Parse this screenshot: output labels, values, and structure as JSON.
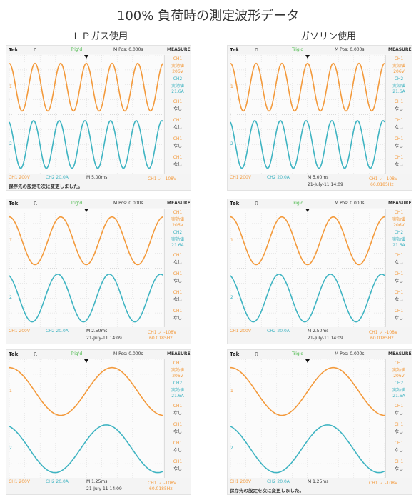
{
  "title": "100% 負荷時の測定波形データ",
  "columns": [
    "ＬＰガス使用",
    "ガソリン使用"
  ],
  "colors": {
    "ch1": "#f39a3c",
    "ch2": "#3fb4c2",
    "grid": "#cfcfcf",
    "run": "#48b848"
  },
  "scope": {
    "brand": "Tek",
    "trig_symbol": "⎍",
    "run_status": "Trig'd",
    "pos": "M Pos: 0.000s",
    "menu_title": "MEASURE",
    "side": {
      "ch1_label": "CH1",
      "ch1_measure": "実効値",
      "ch1_value": "206V",
      "ch2_label": "CH2",
      "ch2_measure": "実効値",
      "ch2_value": "21.6A",
      "off_label": "CH1",
      "none": "なし"
    },
    "bottom": {
      "ch1_scale": "CH1 200V",
      "ch2_scale": "CH2 20.0A",
      "timebase": "M 5.00ms",
      "trig_info": "CH1 ノ -108V",
      "date": "21-July-11 14:09",
      "freq": "60.0185Hz",
      "message": "保存先の設定を次に変更しました。"
    }
  },
  "panels": [
    {
      "row": 1,
      "col": 1,
      "cycles": 6.0,
      "timebase": "M 5.00ms",
      "bottom_message": true
    },
    {
      "row": 1,
      "col": 2,
      "cycles": 6.0,
      "timebase": "M 5.00ms",
      "bottom_message": false
    },
    {
      "row": 2,
      "col": 1,
      "cycles": 3.0,
      "timebase": "M 2.50ms",
      "bottom_message": false
    },
    {
      "row": 2,
      "col": 2,
      "cycles": 3.0,
      "timebase": "M 2.50ms",
      "bottom_message": false
    },
    {
      "row": 3,
      "col": 1,
      "cycles": 1.5,
      "timebase": "M 1.25ms",
      "bottom_message": false
    },
    {
      "row": 3,
      "col": 2,
      "cycles": 1.5,
      "timebase": "M 1.25ms",
      "bottom_message": true
    }
  ]
}
